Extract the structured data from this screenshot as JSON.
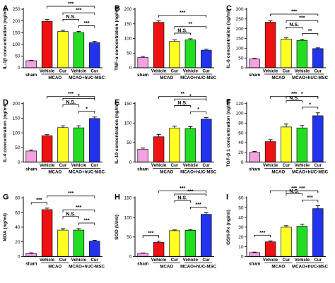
{
  "chart_data": [
    {
      "letter": "A",
      "type": "bar",
      "ylabel": "IL-1β concentration (ng/ml)",
      "ylim": [
        0,
        250
      ],
      "yticks": [
        0,
        50,
        100,
        150,
        200,
        250
      ],
      "categories": [
        "sham",
        "Vehicle",
        "Cur",
        "Vehicle",
        "Cur"
      ],
      "values": [
        30,
        198,
        155,
        150,
        107
      ],
      "errors": [
        2,
        8,
        5,
        5,
        6
      ],
      "groups": [
        "MCAO",
        "MCAO+hUC-MSC"
      ],
      "colors": [
        "#f5a0e0",
        "#ee1111",
        "#ffff22",
        "#22dd22",
        "#2233ee"
      ],
      "comparisons": [
        {
          "a": 1,
          "b": 4,
          "label": "***"
        },
        {
          "a": 2,
          "b": 4,
          "label": "***"
        },
        {
          "a": 3,
          "b": 4,
          "label": "***"
        },
        {
          "a": 2,
          "b": 3,
          "label": "N.S."
        }
      ]
    },
    {
      "letter": "B",
      "type": "bar",
      "ylabel": "TNF-α concentration (ng/ml)",
      "ylim": [
        0,
        200
      ],
      "yticks": [
        0,
        50,
        100,
        150,
        200
      ],
      "categories": [
        "sham",
        "Vehicle",
        "Cur",
        "Vehicle",
        "Cur"
      ],
      "values": [
        35,
        155,
        90,
        95,
        60
      ],
      "errors": [
        4,
        5,
        5,
        4,
        4
      ],
      "groups": [
        "MCAO",
        "MCAO+hUC-MSC"
      ],
      "colors": [
        "#f5a0e0",
        "#ee1111",
        "#ffff22",
        "#22dd22",
        "#2233ee"
      ],
      "comparisons": [
        {
          "a": 1,
          "b": 4,
          "label": "***"
        },
        {
          "a": 2,
          "b": 4,
          "label": "**"
        },
        {
          "a": 2,
          "b": 3,
          "label": "N.S."
        }
      ]
    },
    {
      "letter": "C",
      "type": "bar",
      "ylabel": "IL-6 concentration (ng/ml)",
      "ylim": [
        0,
        300
      ],
      "yticks": [
        0,
        50,
        100,
        150,
        200,
        250,
        300
      ],
      "categories": [
        "sham",
        "Vehicle",
        "Cur",
        "Vehicle",
        "Cur"
      ],
      "values": [
        45,
        233,
        147,
        140,
        98
      ],
      "errors": [
        3,
        7,
        6,
        6,
        4
      ],
      "groups": [
        "MCAO",
        "MCAO+hUC-MSC"
      ],
      "colors": [
        "#f5a0e0",
        "#ee1111",
        "#ffff22",
        "#22dd22",
        "#2233ee"
      ],
      "comparisons": [
        {
          "a": 1,
          "b": 4,
          "label": "***"
        },
        {
          "a": 2,
          "b": 4,
          "label": "***"
        },
        {
          "a": 3,
          "b": 4,
          "label": "**"
        },
        {
          "a": 2,
          "b": 3,
          "label": "N.S."
        }
      ]
    },
    {
      "letter": "D",
      "type": "bar",
      "ylabel": "IL-4 concentration (ng/ml)",
      "ylim": [
        0,
        200
      ],
      "yticks": [
        0,
        50,
        100,
        150,
        200
      ],
      "categories": [
        "sham",
        "Vehicle",
        "Cur",
        "Vehicle",
        "Cur"
      ],
      "values": [
        38,
        90,
        118,
        117,
        149
      ],
      "errors": [
        3,
        4,
        6,
        7,
        5
      ],
      "groups": [
        "MCAO",
        "MCAO+hUC-MSC"
      ],
      "colors": [
        "#f5a0e0",
        "#ee1111",
        "#ffff22",
        "#22dd22",
        "#2233ee"
      ],
      "comparisons": [
        {
          "a": 1,
          "b": 4,
          "label": "***"
        },
        {
          "a": 2,
          "b": 4,
          "label": "*"
        },
        {
          "a": 3,
          "b": 4,
          "label": "*"
        },
        {
          "a": 2,
          "b": 3,
          "label": "N.S."
        }
      ]
    },
    {
      "letter": "E",
      "type": "bar",
      "ylabel": "IL-10 concentration (ng/ml)",
      "ylim": [
        0,
        150
      ],
      "yticks": [
        0,
        50,
        100,
        150
      ],
      "categories": [
        "sham",
        "Vehicle",
        "Cur",
        "Vehicle",
        "Cur"
      ],
      "values": [
        33,
        65,
        87,
        86,
        110
      ],
      "errors": [
        3,
        6,
        5,
        5,
        4
      ],
      "groups": [
        "MCAO",
        "MCAO+hUC-MSC"
      ],
      "colors": [
        "#f5a0e0",
        "#ee1111",
        "#ffff22",
        "#22dd22",
        "#2233ee"
      ],
      "comparisons": [
        {
          "a": 1,
          "b": 4,
          "label": "**"
        },
        {
          "a": 2,
          "b": 4,
          "label": "*"
        },
        {
          "a": 3,
          "b": 4,
          "label": "*"
        },
        {
          "a": 2,
          "b": 3,
          "label": "N.S."
        }
      ]
    },
    {
      "letter": "F",
      "type": "bar",
      "ylabel": "TGF-β 1 concentration (ng/ml)",
      "ylim": [
        0,
        120
      ],
      "yticks": [
        0,
        20,
        40,
        60,
        80,
        100,
        120
      ],
      "categories": [
        "sham",
        "Vehicle",
        "Cur",
        "Vehicle",
        "Cur"
      ],
      "values": [
        20,
        42,
        72,
        70,
        95
      ],
      "errors": [
        2,
        4,
        6,
        5,
        6
      ],
      "groups": [
        "MCAO",
        "MCAO+hUC-MSC"
      ],
      "colors": [
        "#f5a0e0",
        "#ee1111",
        "#ffff22",
        "#22dd22",
        "#2233ee"
      ],
      "comparisons": [
        {
          "a": 1,
          "b": 4,
          "label": "***"
        },
        {
          "a": 2,
          "b": 4,
          "label": "*"
        },
        {
          "a": 3,
          "b": 4,
          "label": "*"
        },
        {
          "a": 2,
          "b": 3,
          "label": "N.S."
        }
      ]
    },
    {
      "letter": "G",
      "type": "bar",
      "ylabel": "MDA (ng/ml)",
      "ylim": [
        0,
        80
      ],
      "yticks": [
        0,
        20,
        40,
        60,
        80
      ],
      "categories": [
        "sham",
        "Vehicle",
        "Cur",
        "Vehicle",
        "Cur"
      ],
      "values": [
        4,
        64,
        36,
        36,
        21
      ],
      "errors": [
        1,
        2,
        2,
        2,
        1
      ],
      "groups": [
        "MCAO",
        "MCAO+hUC-MSC"
      ],
      "colors": [
        "#f5a0e0",
        "#ee1111",
        "#ffff22",
        "#22dd22",
        "#2233ee"
      ],
      "comparisons": [
        {
          "a": 0,
          "b": 1,
          "label": "***"
        },
        {
          "a": 1,
          "b": 4,
          "label": "***"
        },
        {
          "a": 2,
          "b": 4,
          "label": "***"
        },
        {
          "a": 3,
          "b": 4,
          "label": "***"
        },
        {
          "a": 2,
          "b": 3,
          "label": "N.S."
        }
      ]
    },
    {
      "letter": "H",
      "type": "bar",
      "ylabel": "SOD (U/ml)",
      "ylim": [
        0,
        150
      ],
      "yticks": [
        0,
        50,
        100,
        150
      ],
      "categories": [
        "sham",
        "Vehicle",
        "Cur",
        "Vehicle",
        "Cur"
      ],
      "values": [
        8,
        36,
        66,
        67,
        108
      ],
      "errors": [
        1,
        3,
        2,
        2,
        4
      ],
      "groups": [
        "MCAO",
        "MCAO+hUC-MSC"
      ],
      "colors": [
        "#f5a0e0",
        "#ee1111",
        "#ffff22",
        "#22dd22",
        "#2233ee"
      ],
      "comparisons": [
        {
          "a": 0,
          "b": 1,
          "label": "***"
        },
        {
          "a": 1,
          "b": 4,
          "label": "***"
        },
        {
          "a": 2,
          "b": 4,
          "label": "***"
        },
        {
          "a": 3,
          "b": 4,
          "label": "***"
        },
        {
          "a": 2,
          "b": 3,
          "label": "N.S."
        }
      ]
    },
    {
      "letter": "I",
      "type": "bar",
      "ylabel": "GSH-Px (ng/ml)",
      "ylim": [
        0,
        60
      ],
      "yticks": [
        0,
        10,
        20,
        30,
        40,
        50,
        60
      ],
      "categories": [
        "sham",
        "Vehicle",
        "Cur",
        "Vehicle",
        "Cur"
      ],
      "values": [
        4,
        15,
        30,
        31,
        49
      ],
      "errors": [
        0.5,
        1,
        1.5,
        2,
        3
      ],
      "groups": [
        "MCAO",
        "MCAO+hUC-MSC"
      ],
      "colors": [
        "#f5a0e0",
        "#ee1111",
        "#ffff22",
        "#22dd22",
        "#2233ee"
      ],
      "comparisons": [
        {
          "a": 0,
          "b": 1,
          "label": "***"
        },
        {
          "a": 1,
          "b": 4,
          "label": "***"
        },
        {
          "a": 2,
          "b": 4,
          "label": "***"
        },
        {
          "a": 3,
          "b": 4,
          "label": "***"
        },
        {
          "a": 2,
          "b": 3,
          "label": "N.S."
        }
      ]
    }
  ]
}
